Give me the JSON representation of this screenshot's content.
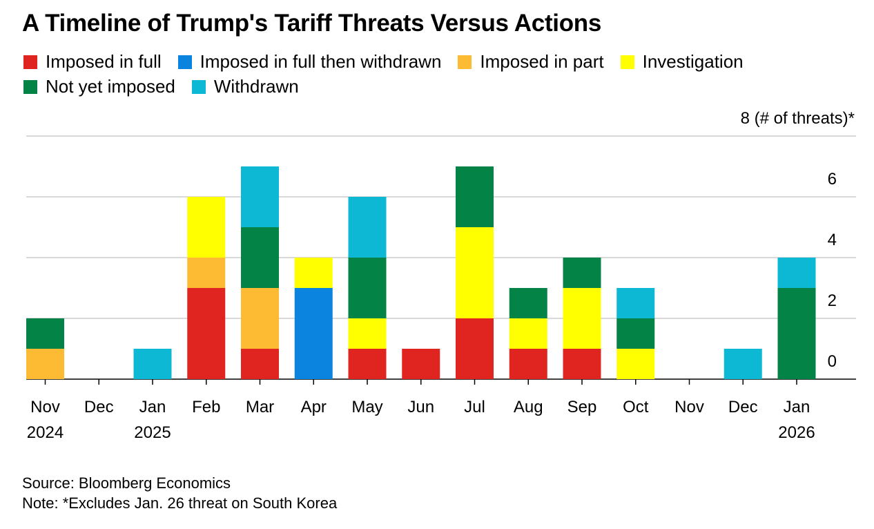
{
  "chart_data": {
    "type": "bar",
    "stacked": true,
    "title": "A Timeline of Trump's Tariff Threats Versus Actions",
    "ylabel": "8 (# of threats)*",
    "ylim": [
      0,
      8
    ],
    "yticks": [
      "0",
      "2",
      "4",
      "6"
    ],
    "grid": true,
    "legend_position": "top",
    "categories": [
      [
        "Nov",
        "2024"
      ],
      [
        "Dec",
        ""
      ],
      [
        "Jan",
        "2025"
      ],
      [
        "Feb",
        ""
      ],
      [
        "Mar",
        ""
      ],
      [
        "Apr",
        ""
      ],
      [
        "May",
        ""
      ],
      [
        "Jun",
        ""
      ],
      [
        "Jul",
        ""
      ],
      [
        "Aug",
        ""
      ],
      [
        "Sep",
        ""
      ],
      [
        "Oct",
        ""
      ],
      [
        "Nov",
        ""
      ],
      [
        "Dec",
        ""
      ],
      [
        "Jan",
        "2026"
      ]
    ],
    "series": [
      {
        "name": "Imposed in full",
        "color": "#e0241f",
        "values": [
          0,
          0,
          0,
          3,
          1,
          0,
          1,
          1,
          2,
          1,
          1,
          0,
          0,
          0,
          0
        ]
      },
      {
        "name": "Imposed in full then withdrawn",
        "color": "#0a84de",
        "values": [
          0,
          0,
          0,
          0,
          0,
          3,
          0,
          0,
          0,
          0,
          0,
          0,
          0,
          0,
          0
        ]
      },
      {
        "name": "Imposed in part",
        "color": "#fdba33",
        "values": [
          1,
          0,
          0,
          1,
          2,
          0,
          0,
          0,
          0,
          0,
          0,
          0,
          0,
          0,
          0
        ]
      },
      {
        "name": "Investigation",
        "color": "#ffff00",
        "values": [
          0,
          0,
          0,
          2,
          0,
          1,
          1,
          0,
          3,
          1,
          2,
          1,
          0,
          0,
          0
        ]
      },
      {
        "name": "Not yet imposed",
        "color": "#038346",
        "values": [
          1,
          0,
          0,
          0,
          2,
          0,
          2,
          0,
          2,
          1,
          1,
          1,
          0,
          0,
          3
        ]
      },
      {
        "name": "Withdrawn",
        "color": "#0cb8d3",
        "values": [
          0,
          0,
          1,
          0,
          2,
          0,
          2,
          0,
          0,
          0,
          0,
          1,
          0,
          1,
          1
        ]
      }
    ]
  },
  "footer": {
    "source": "Source: Bloomberg Economics",
    "note": "Note: *Excludes Jan. 26 threat on South Korea"
  }
}
